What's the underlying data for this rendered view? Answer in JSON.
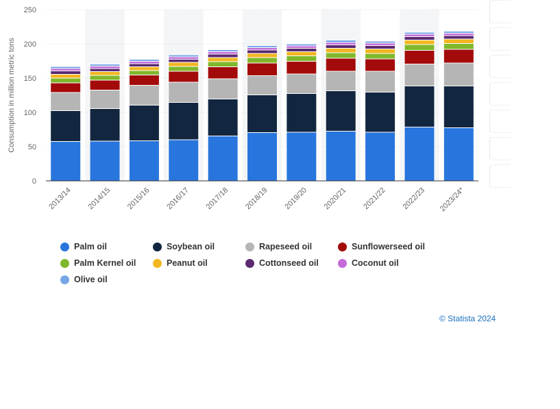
{
  "chart_data": {
    "type": "bar",
    "stacked": true,
    "ylabel": "Consumption in million metric tons",
    "ylim": [
      0,
      250
    ],
    "yticks": [
      "0",
      "50",
      "100",
      "150",
      "200",
      "250"
    ],
    "categories": [
      "2013/14",
      "2014/15",
      "2015/16",
      "2016/17",
      "2017/18",
      "2018/19",
      "2019/20",
      "2020/21",
      "2021/22",
      "2022/23",
      "2023/24*"
    ],
    "series": [
      {
        "name": "Palm oil",
        "color": "#2876dd",
        "values": [
          57.5,
          58,
          58.5,
          60,
          65.5,
          70.5,
          71,
          72.5,
          71,
          78.5,
          77.5
        ]
      },
      {
        "name": "Soybean oil",
        "color": "#12263f",
        "values": [
          45,
          47.5,
          52,
          54.5,
          54,
          55,
          56.5,
          59,
          58.5,
          60,
          61
        ]
      },
      {
        "name": "Rapeseed oil",
        "color": "#b5b5b5",
        "values": [
          26.5,
          27,
          29,
          29.5,
          29.5,
          28,
          28.5,
          28.5,
          30.5,
          32,
          33.5
        ]
      },
      {
        "name": "Sunflowerseed oil",
        "color": "#a30b0b",
        "values": [
          14,
          14.5,
          15,
          16,
          17.5,
          18.5,
          18.5,
          19,
          18,
          20,
          20
        ]
      },
      {
        "name": "Palm Kernel oil",
        "color": "#80b82c",
        "values": [
          7,
          7,
          6.5,
          7,
          7.5,
          8,
          8,
          8,
          8,
          8.5,
          8.5
        ]
      },
      {
        "name": "Peanut oil",
        "color": "#f2b620",
        "values": [
          5.5,
          5.5,
          5.5,
          6,
          6,
          6,
          6,
          6.5,
          6.5,
          6.5,
          6.5
        ]
      },
      {
        "name": "Cottonseed oil",
        "color": "#5a2a70",
        "values": [
          5,
          4.5,
          4.5,
          4.5,
          5,
          5,
          5,
          5,
          5,
          5,
          5
        ]
      },
      {
        "name": "Coconut oil",
        "color": "#c46bd8",
        "values": [
          3.5,
          3.5,
          3.5,
          3.5,
          3.5,
          3.5,
          3.5,
          3.5,
          3.5,
          3.5,
          3.5
        ]
      },
      {
        "name": "Olive oil",
        "color": "#77a6e6",
        "values": [
          3,
          3,
          3,
          3,
          3,
          3,
          3,
          3.5,
          3,
          3,
          3
        ]
      }
    ],
    "grid": true,
    "legend_position": "bottom"
  },
  "credit": "© Statista 2024"
}
